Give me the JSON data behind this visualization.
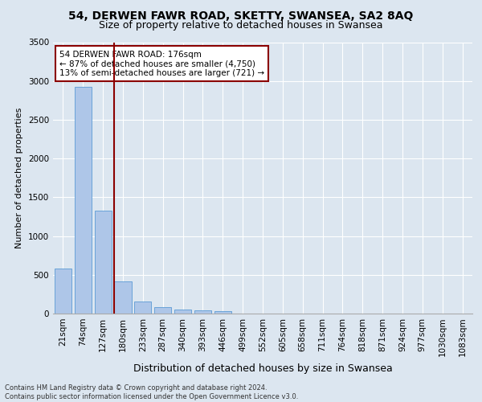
{
  "title1": "54, DERWEN FAWR ROAD, SKETTY, SWANSEA, SA2 8AQ",
  "title2": "Size of property relative to detached houses in Swansea",
  "xlabel": "Distribution of detached houses by size in Swansea",
  "ylabel": "Number of detached properties",
  "footnote1": "Contains HM Land Registry data © Crown copyright and database right 2024.",
  "footnote2": "Contains public sector information licensed under the Open Government Licence v3.0.",
  "bar_labels": [
    "21sqm",
    "74sqm",
    "127sqm",
    "180sqm",
    "233sqm",
    "287sqm",
    "340sqm",
    "393sqm",
    "446sqm",
    "499sqm",
    "552sqm",
    "605sqm",
    "658sqm",
    "711sqm",
    "764sqm",
    "818sqm",
    "871sqm",
    "924sqm",
    "977sqm",
    "1030sqm",
    "1083sqm"
  ],
  "bar_values": [
    580,
    2920,
    1330,
    415,
    155,
    80,
    48,
    38,
    35,
    0,
    0,
    0,
    0,
    0,
    0,
    0,
    0,
    0,
    0,
    0,
    0
  ],
  "bar_color": "#aec6e8",
  "bar_edge_color": "#5b9bd5",
  "vline_color": "#8B0000",
  "annotation_text": "54 DERWEN FAWR ROAD: 176sqm\n← 87% of detached houses are smaller (4,750)\n13% of semi-detached houses are larger (721) →",
  "annotation_box_color": "#8B0000",
  "ylim": [
    0,
    3500
  ],
  "yticks": [
    0,
    500,
    1000,
    1500,
    2000,
    2500,
    3000,
    3500
  ],
  "bg_color": "#dce6f0",
  "plot_bg_color": "#dce6f0",
  "grid_color": "#ffffff",
  "title1_fontsize": 10,
  "title2_fontsize": 9,
  "xlabel_fontsize": 9,
  "ylabel_fontsize": 8,
  "tick_fontsize": 7.5,
  "annot_fontsize": 7.5
}
